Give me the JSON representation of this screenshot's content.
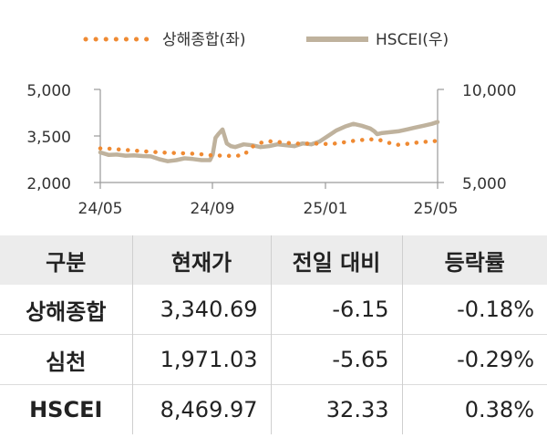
{
  "chart_data": {
    "type": "line",
    "legend": {
      "placement": "top-center",
      "items": [
        {
          "label": "상해종합(좌)",
          "style": "dotted",
          "color": "#ef8a33"
        },
        {
          "label": "HSCEI(우)",
          "style": "solid",
          "color": "#bfb29d"
        }
      ]
    },
    "x_ticks": [
      "24/05",
      "24/09",
      "25/01",
      "25/05"
    ],
    "left_axis": {
      "ticks": [
        "5,000",
        "3,500",
        "2,000"
      ],
      "range": [
        2000,
        5000
      ]
    },
    "right_axis": {
      "ticks": [
        "10,000",
        "5,000"
      ],
      "range": [
        5000,
        10000
      ]
    },
    "grid": false,
    "series": [
      {
        "name": "상해종합(좌)",
        "axis": "left",
        "color": "#ef8a33",
        "x": [
          0,
          0.3,
          0.6,
          0.9,
          1.2,
          1.5,
          1.8,
          2.1,
          2.4,
          2.7,
          3.0,
          3.3,
          3.6,
          3.9,
          4.2,
          4.5,
          4.8,
          5.1,
          5.4,
          5.7,
          6.0,
          6.3,
          6.6,
          6.9,
          7.2,
          7.5,
          7.8,
          8.1,
          8.4,
          8.7,
          9.0,
          9.3,
          9.6,
          9.9,
          10.2,
          10.5,
          10.8,
          11.1,
          11.4,
          11.7,
          12.0
        ],
        "values": [
          3100,
          3090,
          3070,
          3050,
          3030,
          3010,
          2990,
          2970,
          2960,
          2950,
          2940,
          2930,
          2910,
          2880,
          2870,
          2860,
          2860,
          2880,
          3150,
          3280,
          3330,
          3310,
          3280,
          3260,
          3250,
          3260,
          3250,
          3240,
          3260,
          3300,
          3340,
          3370,
          3390,
          3380,
          3300,
          3210,
          3230,
          3270,
          3300,
          3320,
          3340
        ]
      },
      {
        "name": "HSCEI(우)",
        "axis": "right",
        "color": "#bfb29d",
        "x": [
          0,
          0.3,
          0.6,
          0.9,
          1.2,
          1.5,
          1.8,
          2.1,
          2.4,
          2.7,
          3.0,
          3.3,
          3.6,
          3.9,
          4.0,
          4.1,
          4.2,
          4.35,
          4.5,
          4.65,
          4.8,
          5.1,
          5.4,
          5.7,
          6.0,
          6.3,
          6.6,
          6.9,
          7.2,
          7.5,
          7.8,
          8.1,
          8.4,
          8.7,
          9.0,
          9.3,
          9.6,
          9.75,
          9.85,
          10.0,
          10.3,
          10.6,
          10.9,
          11.2,
          11.5,
          11.8,
          12.0
        ],
        "values": [
          6620,
          6480,
          6500,
          6440,
          6460,
          6420,
          6400,
          6250,
          6140,
          6200,
          6300,
          6260,
          6200,
          6200,
          6500,
          7400,
          7600,
          7850,
          7100,
          6950,
          6900,
          7050,
          7000,
          6900,
          6950,
          7050,
          7000,
          6950,
          7100,
          7050,
          7200,
          7500,
          7800,
          8000,
          8150,
          8050,
          7900,
          7750,
          7600,
          7650,
          7700,
          7750,
          7850,
          7950,
          8050,
          8150,
          8250
        ]
      }
    ]
  },
  "table": {
    "headers": [
      "구분",
      "현재가",
      "전일 대비",
      "등락률"
    ],
    "rows": [
      {
        "name": "상해종합",
        "price": "3,340.69",
        "change": "-6.15",
        "rate": "-0.18%"
      },
      {
        "name": "심천",
        "price": "1,971.03",
        "change": "-5.65",
        "rate": "-0.29%"
      },
      {
        "name": "HSCEI",
        "price": "8,469.97",
        "change": "32.33",
        "rate": "0.38%"
      }
    ]
  }
}
